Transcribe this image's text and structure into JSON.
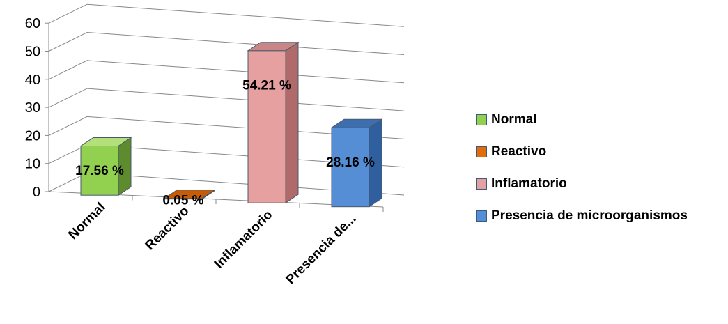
{
  "chart_data": {
    "type": "bar",
    "categories": [
      "Normal",
      "Reactivo",
      "Inflamatorio",
      "Presencia de..."
    ],
    "values": [
      17.56,
      0.05,
      54.21,
      28.16
    ],
    "data_labels": [
      "17.56 %",
      "0.05 %",
      "54.21 %",
      "28.16 %"
    ],
    "y_ticks": [
      "0",
      "10",
      "20",
      "30",
      "40",
      "50",
      "60"
    ],
    "ylim": [
      0,
      60
    ],
    "grid": true,
    "three_d": true,
    "legend_position": "right",
    "legend": [
      "Normal",
      "Reactivo",
      "Inflamatorio",
      "Presencia de microorganismos"
    ],
    "colors": [
      {
        "front": "#92d050",
        "side": "#5d8b2e",
        "top": "#b3e07a"
      },
      {
        "front": "#e36c09",
        "side": "#a24c05",
        "top": "#c65c08"
      },
      {
        "front": "#e6a0a0",
        "side": "#b06a6a",
        "top": "#c98686"
      },
      {
        "front": "#558ed5",
        "side": "#2f5f9e",
        "top": "#3d6fb0"
      }
    ]
  }
}
